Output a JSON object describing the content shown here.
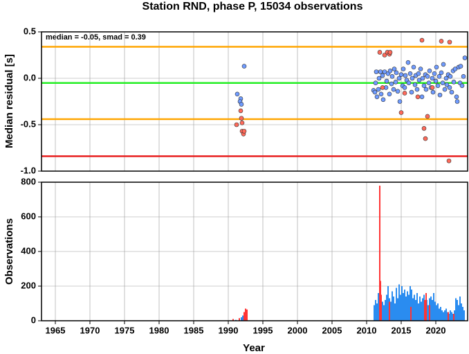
{
  "chart_data": [
    {
      "type": "scatter",
      "title": "Station RND, phase P, 15034 observations",
      "annotation": "median = -0.05, smad = 0.39",
      "ylabel": "Median residual [s]",
      "xlim": [
        1963,
        2024.6
      ],
      "ylim": [
        -1.0,
        0.5
      ],
      "yticks": [
        0.5,
        {
          "value": 0,
          "label": "0.0"
        },
        -0.5,
        {
          "value": -1,
          "label": "-1.0"
        }
      ],
      "grid": true,
      "hlines": [
        {
          "value": 0.34,
          "color": "#ffa500"
        },
        {
          "value": -0.05,
          "color": "#22ee22"
        },
        {
          "value": -0.44,
          "color": "#ffa500"
        },
        {
          "value": -0.84,
          "color": "#e82020"
        }
      ],
      "series": [
        {
          "color": "#6f9bff",
          "x": [
            1991.3,
            1991.8,
            1991.7,
            1992.3,
            1991.9,
            2011.0,
            2011.2,
            2011.3,
            2011.4,
            2011.5,
            2011.7,
            2011.8,
            2012.0,
            2012.1,
            2012.3,
            2012.4,
            2012.6,
            2012.8,
            2012.9,
            2013.1,
            2013.3,
            2013.4,
            2013.6,
            2013.7,
            2013.9,
            2014.0,
            2014.2,
            2014.3,
            2014.5,
            2014.7,
            2014.8,
            2015.0,
            2015.2,
            2015.3,
            2015.5,
            2015.6,
            2015.8,
            2016.0,
            2016.1,
            2016.3,
            2016.5,
            2016.6,
            2016.8,
            2017.0,
            2017.1,
            2017.3,
            2017.5,
            2017.6,
            2017.8,
            2018.0,
            2018.1,
            2018.3,
            2018.5,
            2018.6,
            2018.8,
            2019.0,
            2019.1,
            2019.3,
            2019.5,
            2019.6,
            2019.8,
            2020.0,
            2020.1,
            2020.3,
            2020.5,
            2020.6,
            2020.8,
            2021.0,
            2021.1,
            2021.3,
            2021.5,
            2021.6,
            2021.8,
            2022.0,
            2022.1,
            2022.3,
            2022.5,
            2022.6,
            2022.8,
            2023.0,
            2023.1,
            2023.3,
            2023.5,
            2023.6,
            2023.8,
            2024.0,
            2024.2
          ],
          "values": [
            -0.17,
            -0.22,
            -0.25,
            0.13,
            -0.28,
            -0.13,
            -0.15,
            -0.05,
            0.07,
            -0.2,
            -0.12,
            0.0,
            0.07,
            -0.17,
            0.03,
            -0.23,
            0.07,
            -0.1,
            -0.03,
            0.05,
            -0.17,
            0.08,
            -0.06,
            0.02,
            -0.12,
            0.1,
            -0.04,
            0.06,
            -0.14,
            0.0,
            -0.25,
            0.04,
            -0.08,
            0.1,
            -0.1,
            0.03,
            -0.02,
            0.17,
            -0.05,
            0.05,
            -0.15,
            0.0,
            0.12,
            -0.07,
            0.03,
            -0.12,
            0.05,
            -0.02,
            0.1,
            -0.2,
            0.0,
            -0.08,
            0.04,
            -0.12,
            0.02,
            -0.05,
            0.08,
            -0.1,
            0.0,
            -0.15,
            0.05,
            -0.03,
            0.12,
            -0.08,
            0.02,
            -0.18,
            0.06,
            -0.05,
            0.15,
            -0.12,
            0.0,
            -0.07,
            0.04,
            -0.1,
            0.02,
            -0.15,
            0.08,
            -0.04,
            0.1,
            -0.2,
            -0.25,
            0.12,
            -0.05,
            0.13,
            -0.08,
            0.02,
            0.22
          ]
        },
        {
          "color": "#ff6a5a",
          "x": [
            1991.2,
            1992.0,
            1992.2,
            1992.0,
            1992.3,
            1991.9,
            1991.8,
            2011.9,
            2012.6,
            2013.0,
            2013.3,
            2013.4,
            2015.0,
            2015.5,
            2018.0,
            2018.3,
            2018.5,
            2018.8,
            2020.8,
            2022.0,
            2021.9,
            2012.3,
            2017.4,
            2019.5
          ],
          "values": [
            -0.5,
            -0.57,
            -0.6,
            -0.48,
            -0.57,
            -0.43,
            -0.35,
            0.28,
            0.25,
            0.28,
            0.26,
            0.28,
            -0.37,
            -0.16,
            0.41,
            -0.54,
            -0.65,
            -0.41,
            0.4,
            0.39,
            -0.89,
            -0.1,
            -0.2,
            -0.1
          ]
        }
      ]
    },
    {
      "type": "bar",
      "xlabel": "Year",
      "ylabel": "Observations",
      "xlim": [
        1963,
        2024.6
      ],
      "ylim": [
        0,
        800
      ],
      "xticks": [
        1965,
        1970,
        1975,
        1980,
        1985,
        1990,
        1995,
        2000,
        2005,
        2010,
        2015,
        2020
      ],
      "yticks": [
        0,
        200,
        400,
        600,
        800
      ],
      "grid": true,
      "series": [
        {
          "color": "#2a8cf0",
          "x": [
            1991.0,
            1991.8,
            1992.0,
            2011.0,
            2011.2,
            2011.4,
            2011.6,
            2011.8,
            2012.0,
            2012.2,
            2012.4,
            2012.6,
            2012.8,
            2013.0,
            2013.2,
            2013.4,
            2013.6,
            2013.8,
            2014.0,
            2014.2,
            2014.4,
            2014.6,
            2014.8,
            2015.0,
            2015.2,
            2015.4,
            2015.6,
            2015.8,
            2016.0,
            2016.2,
            2016.4,
            2016.6,
            2016.8,
            2017.0,
            2017.2,
            2017.4,
            2017.6,
            2017.8,
            2018.0,
            2018.2,
            2018.4,
            2018.6,
            2018.8,
            2019.0,
            2019.2,
            2019.4,
            2019.6,
            2019.8,
            2020.0,
            2020.2,
            2020.4,
            2020.6,
            2020.8,
            2021.0,
            2021.2,
            2021.4,
            2021.6,
            2021.8,
            2022.0,
            2022.2,
            2022.4,
            2022.6,
            2022.8,
            2023.0,
            2023.2,
            2023.4,
            2023.6,
            2023.8,
            2024.0
          ],
          "values": [
            5,
            20,
            30,
            90,
            120,
            100,
            160,
            130,
            140,
            110,
            90,
            120,
            150,
            200,
            130,
            110,
            170,
            140,
            100,
            190,
            130,
            210,
            150,
            200,
            160,
            180,
            140,
            170,
            150,
            200,
            180,
            130,
            150,
            120,
            160,
            100,
            140,
            110,
            130,
            150,
            100,
            120,
            90,
            130,
            140,
            120,
            160,
            110,
            90,
            100,
            70,
            80,
            60,
            50,
            60,
            70,
            50,
            40,
            60,
            50,
            40,
            60,
            130,
            120,
            90,
            140,
            100,
            80,
            60
          ]
        },
        {
          "color": "#ff3434",
          "x": [
            1990.6,
            1991.5,
            1992.2,
            1992.4,
            1992.6,
            2011.8,
            2011.9,
            2012.0,
            2013.2,
            2016.3,
            2018.3,
            2018.5,
            2019.0,
            2021.7,
            2022.5
          ],
          "values": [
            10,
            15,
            50,
            70,
            65,
            780,
            230,
            150,
            110,
            80,
            120,
            160,
            90,
            50,
            40
          ]
        }
      ]
    }
  ]
}
